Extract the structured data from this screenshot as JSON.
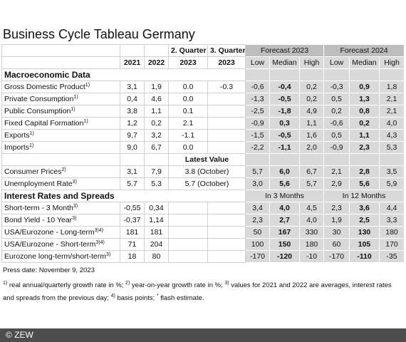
{
  "title": "Business Cycle Tableau Germany",
  "header": {
    "quarter2": "2. Quarter",
    "quarter3": "3. Quarter",
    "forecast2023": "Forecast 2023",
    "forecast2024": "Forecast 2024",
    "years": [
      "2021",
      "2022",
      "2023",
      "2023"
    ],
    "stats": [
      "Low",
      "Median",
      "High",
      "Low",
      "Median",
      "High"
    ]
  },
  "rows": [
    {
      "section": "Macroeconomic Data"
    },
    {
      "label": "Gross Domestic Product",
      "note": "1)",
      "past": [
        "3,1",
        "1,9",
        "0.0",
        "-0.3"
      ],
      "forecast": [
        "-0,6",
        "-0,4",
        "0,2",
        "-0,3",
        "0,9",
        "1,8"
      ]
    },
    {
      "label": "Private Consumption",
      "note": "1)",
      "past": [
        "0,4",
        "4,6",
        "0.0",
        null
      ],
      "forecast": [
        "-1,3",
        "-0,5",
        "0,2",
        "0,5",
        "1,3",
        "2,1"
      ]
    },
    {
      "label": "Public Consumption",
      "note": "1)",
      "past": [
        "3,8",
        "1,1",
        "0.1",
        null
      ],
      "forecast": [
        "-2,5",
        "-1,8",
        "4,9",
        "0,2",
        "0,8",
        "2,1"
      ]
    },
    {
      "label": "Fixed Capital Formation",
      "note": "1)",
      "past": [
        "1,2",
        "0,2",
        "2.1",
        null
      ],
      "forecast": [
        "-0,9",
        "0,3",
        "1,1",
        "-0,6",
        "0,2",
        "4,0"
      ]
    },
    {
      "label": "Exports",
      "note": "1)",
      "past": [
        "9,7",
        "3,2",
        "-1.1",
        null
      ],
      "forecast": [
        "-1,5",
        "-0,5",
        "1,6",
        "0,5",
        "1,1",
        "4,3"
      ]
    },
    {
      "label": "Imports",
      "note": "1)",
      "past": [
        "9,0",
        "6,7",
        "0.0",
        null
      ],
      "forecast": [
        "-2,2",
        "-1,1",
        "2,0",
        "-0,9",
        "2,3",
        "5,3"
      ]
    },
    {
      "subheader": "Latest Value"
    },
    {
      "label": "Consumer Prices",
      "note": "2)",
      "past": [
        "3,1",
        "7,9"
      ],
      "latest": "3.8 (October)",
      "forecast": [
        "5,7",
        "6,0",
        "6,7",
        "2,1",
        "2,8",
        "3,5"
      ]
    },
    {
      "label": "Unemployment Rate",
      "note": "3)",
      "past": [
        "5.7",
        "5.3"
      ],
      "latest": "5.7 (October)",
      "forecast": [
        "3,0",
        "5,6",
        "5,7",
        "2,9",
        "5,6",
        "5,9"
      ]
    },
    {
      "section": "Interest Rates and Spreads",
      "horizons": [
        "In 3 Months",
        "In 12 Months"
      ]
    },
    {
      "label": "Short-term - 3 Month",
      "note": "3)",
      "past": [
        "-0,55",
        "0,34",
        null,
        null
      ],
      "forecast": [
        "3,4",
        "4,0",
        "4,5",
        "2,3",
        "3,6",
        "4,4"
      ]
    },
    {
      "label": "Bond Yield - 10 Year",
      "note": "3)",
      "past": [
        "-0,37",
        "1,14",
        null,
        null
      ],
      "forecast": [
        "2,3",
        "2,7",
        "4,0",
        "1,9",
        "2,5",
        "3,3"
      ]
    },
    {
      "label": "USA/Eurozone - Long-term",
      "note": "3)4)",
      "past": [
        "181",
        "181",
        null,
        null
      ],
      "forecast": [
        "50",
        "167",
        "330",
        "30",
        "130",
        "180"
      ]
    },
    {
      "label": "USA/Eurozone - Short-term",
      "note": "3)4)",
      "past": [
        "71",
        "204",
        null,
        null
      ],
      "forecast": [
        "100",
        "150",
        "180",
        "60",
        "105",
        "170"
      ]
    },
    {
      "label": "Eurozone long-term/short-term",
      "note": "3)",
      "past": [
        "18",
        "80",
        null,
        null
      ],
      "forecast": [
        "-170",
        "-120",
        "-10",
        "-170",
        "-110",
        "-35"
      ]
    }
  ],
  "press_date": "Press date: November 9, 2023",
  "footnotes": [
    {
      "mark": "1)",
      "text": "real annual/quarterly growth rate in %;"
    },
    {
      "mark": "2)",
      "text": "year-on-year growth rate in %;"
    },
    {
      "mark": "3)",
      "text": "values for 2021 and 2022 are averages, interest rates and spreads from the previous day;"
    },
    {
      "mark": "4)",
      "text": "basis points;"
    },
    {
      "mark": "*",
      "text": "flash estimate."
    }
  ],
  "copyright": "© ZEW"
}
